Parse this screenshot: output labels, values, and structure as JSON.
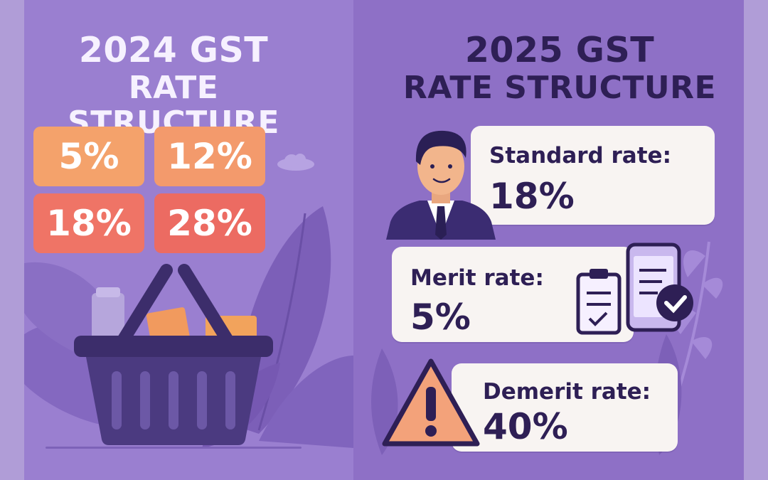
{
  "left_panel": {
    "title_line1": "2024 GST",
    "title_line2": "RATE STRUCTURE",
    "rates": [
      {
        "label": "5%",
        "color": "#f4a26b"
      },
      {
        "label": "12%",
        "color": "#f39a6c"
      },
      {
        "label": "18%",
        "color": "#ef7466"
      },
      {
        "label": "28%",
        "color": "#ec6b62"
      }
    ]
  },
  "right_panel": {
    "title_line1": "2025 GST",
    "title_line2": "RATE STRUCTURE",
    "cards": [
      {
        "label": "Standard rate:",
        "value": "18%",
        "icon": "businessman-icon"
      },
      {
        "label": "Merit rate:",
        "value": "5%",
        "icon": "checklist-phone-icon"
      },
      {
        "label": "Demerit rate:",
        "value": "40%",
        "icon": "warning-icon"
      }
    ]
  },
  "colors": {
    "left_bg": "#9a7fd0",
    "right_bg": "#8e70c6",
    "dark_text": "#2e1f55",
    "card_bg": "#f8f4f2"
  }
}
